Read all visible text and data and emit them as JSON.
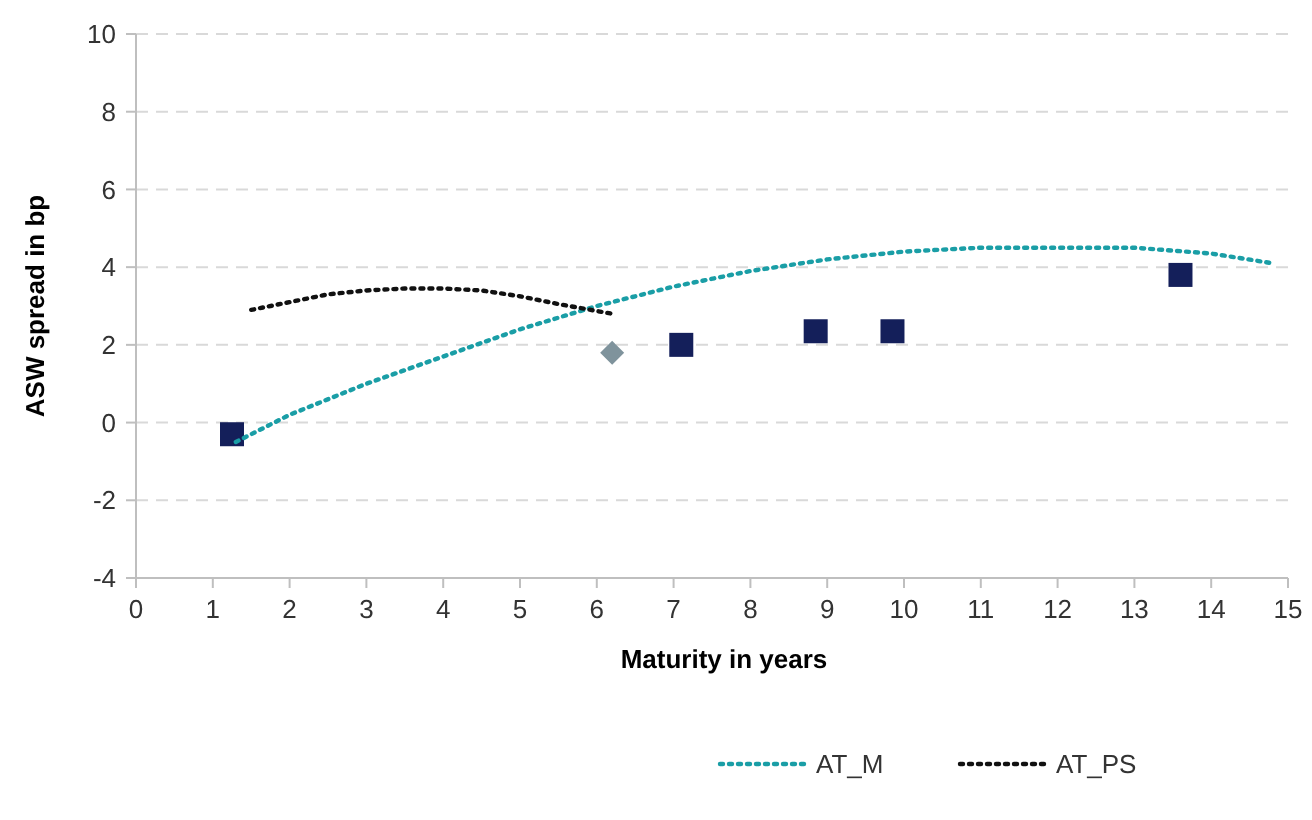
{
  "chart_data": {
    "type": "scatter",
    "xlabel": "Maturity in years",
    "ylabel": "ASW spread in bp",
    "xlim": [
      0,
      15
    ],
    "xticks": [
      0,
      1,
      2,
      3,
      4,
      5,
      6,
      7,
      8,
      9,
      10,
      11,
      12,
      13,
      14,
      15
    ],
    "ylim": [
      -4,
      10
    ],
    "yticks": [
      -4,
      -2,
      0,
      2,
      4,
      6,
      8,
      10
    ],
    "grid": "y",
    "legend": "bottom",
    "series": [
      {
        "marker": "square",
        "color": "#141f5a",
        "x": [
          1.25,
          7.1,
          8.85,
          9.85,
          13.6
        ],
        "values": [
          -0.3,
          2.0,
          2.35,
          2.35,
          3.8
        ]
      },
      {
        "marker": "diamond",
        "color": "#7f939c",
        "x": [
          6.2
        ],
        "values": [
          1.8
        ]
      },
      {
        "type": "line",
        "name": "AT_M",
        "line_style": "dotted",
        "color": "#1a9ea6",
        "x": [
          1.3,
          2,
          3,
          4,
          5,
          6,
          7,
          8,
          9,
          10,
          11,
          12,
          13,
          14,
          14.8
        ],
        "values": [
          -0.5,
          0.2,
          1.0,
          1.7,
          2.4,
          3.0,
          3.5,
          3.9,
          4.2,
          4.4,
          4.5,
          4.5,
          4.5,
          4.35,
          4.1
        ]
      },
      {
        "type": "line",
        "name": "AT_PS",
        "line_style": "dotted",
        "color": "#111111",
        "x": [
          1.5,
          2,
          2.5,
          3,
          3.5,
          4,
          4.5,
          5,
          5.5,
          6.2
        ],
        "values": [
          2.9,
          3.1,
          3.3,
          3.4,
          3.45,
          3.45,
          3.4,
          3.25,
          3.05,
          2.8
        ]
      }
    ]
  }
}
